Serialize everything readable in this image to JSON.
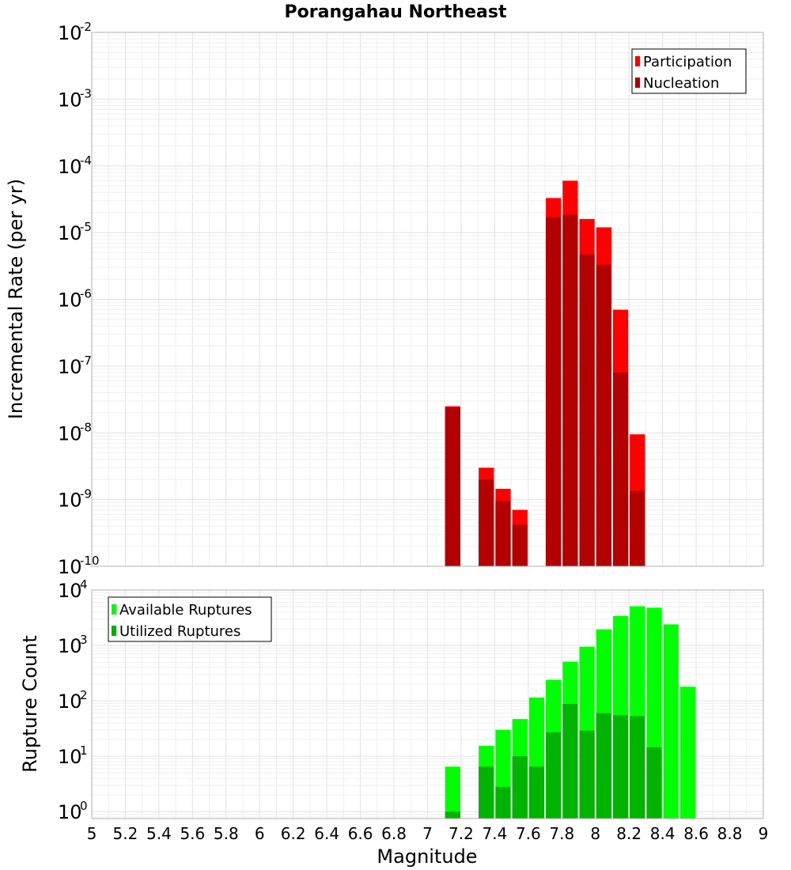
{
  "chart_data": {
    "title": "Porangahau Northeast",
    "xlabel": "Magnitude",
    "x_ticks": [
      "5",
      "5.2",
      "5.4",
      "5.6",
      "5.8",
      "6",
      "6.2",
      "6.4",
      "6.6",
      "6.8",
      "7",
      "7.2",
      "7.4",
      "7.6",
      "7.8",
      "8",
      "8.2",
      "8.4",
      "8.6",
      "8.8",
      "9"
    ],
    "xlim": [
      5,
      9
    ],
    "bar_width": 0.1,
    "panels": [
      {
        "type": "bar",
        "scale": "log",
        "ylabel": "Incremental Rate (per yr)",
        "ylim": [
          1e-10,
          0.01
        ],
        "y_tick_exponents": [
          "-10",
          "-9",
          "-8",
          "-7",
          "-6",
          "-5",
          "-4",
          "-3",
          "-2"
        ],
        "legend_position": "top-right",
        "series": [
          {
            "name": "Participation",
            "color": "#ff0000",
            "x": [
              7.15,
              7.35,
              7.45,
              7.55,
              7.75,
              7.85,
              7.95,
              8.05,
              8.15,
              8.25
            ],
            "values": [
              2.5e-08,
              3e-09,
              1.45e-09,
              7e-10,
              3.3e-05,
              6e-05,
              1.6e-05,
              1.2e-05,
              7e-07,
              9.5e-09
            ]
          },
          {
            "name": "Nucleation",
            "color": "#b30000",
            "x": [
              7.15,
              7.35,
              7.45,
              7.55,
              7.75,
              7.85,
              7.95,
              8.05,
              8.15,
              8.25
            ],
            "values": [
              2.4e-08,
              2e-09,
              9.5e-10,
              4.2e-10,
              1.7e-05,
              1.85e-05,
              4.7e-06,
              3.3e-06,
              8e-08,
              1.35e-09
            ]
          }
        ]
      },
      {
        "type": "bar",
        "scale": "log",
        "ylabel": "Rupture Count",
        "ylim": [
          0.75,
          10000
        ],
        "y_tick_exponents": [
          "0",
          "1",
          "2",
          "3",
          "4"
        ],
        "legend_position": "top-left",
        "series": [
          {
            "name": "Available Ruptures",
            "color": "#00ff00",
            "x": [
              7.15,
              7.35,
              7.45,
              7.55,
              7.65,
              7.75,
              7.85,
              7.95,
              8.05,
              8.15,
              8.25,
              8.35,
              8.45,
              8.55
            ],
            "values": [
              6.5,
              15.5,
              30,
              47,
              115,
              240,
              510,
              950,
              1950,
              3400,
              5100,
              4800,
              2400,
              180
            ]
          },
          {
            "name": "Utilized Ruptures",
            "color": "#00b300",
            "x": [
              7.15,
              7.35,
              7.45,
              7.55,
              7.65,
              7.75,
              7.85,
              7.95,
              8.05,
              8.15,
              8.25,
              8.35
            ],
            "values": [
              1,
              6.5,
              2.8,
              10,
              6.5,
              27,
              88,
              29,
              60,
              55,
              53,
              14.5
            ]
          }
        ]
      }
    ]
  }
}
